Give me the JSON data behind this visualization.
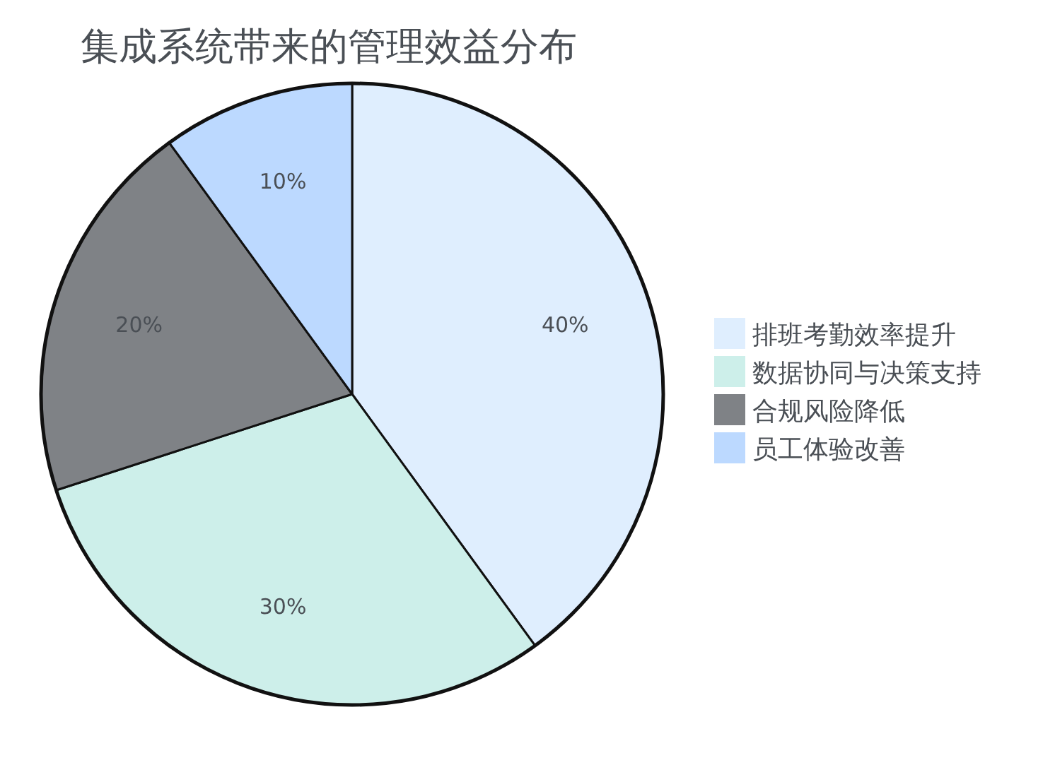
{
  "chart_data": {
    "type": "pie",
    "title": "集成系统带来的管理效益分布",
    "categories": [
      "排班考勤效率提升",
      "数据协同与决策支持",
      "合规风险降低",
      "员工体验改善"
    ],
    "values": [
      40,
      30,
      20,
      10
    ],
    "colors": [
      "#dfeefe",
      "#cdefea",
      "#7f8286",
      "#bcd9ff"
    ],
    "value_labels": [
      "40%",
      "30%",
      "20%",
      "10%"
    ],
    "legend": "right"
  }
}
